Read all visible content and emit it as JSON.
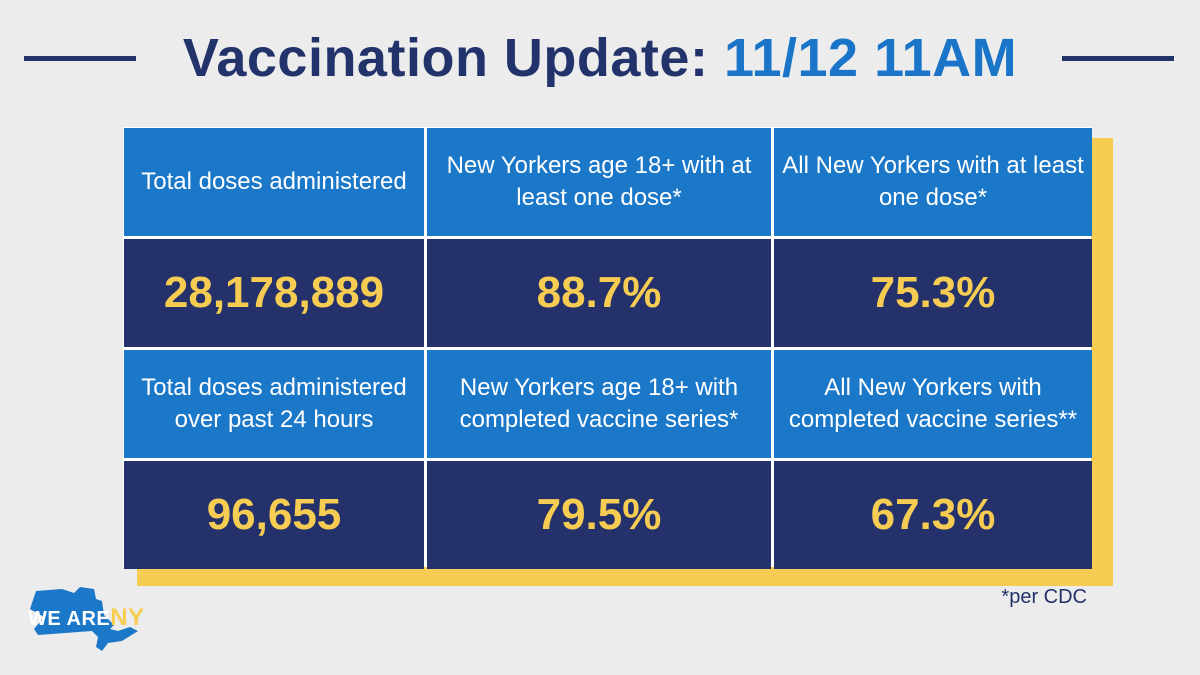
{
  "header": {
    "title_main": "Vaccination Update: ",
    "title_date": "11/12 11AM"
  },
  "stats": {
    "row1": [
      {
        "label": "Total doses administered",
        "value": "28,178,889"
      },
      {
        "label": "New Yorkers age 18+ with at least one dose*",
        "value": "88.7%"
      },
      {
        "label": "All New Yorkers with at least one dose*",
        "value": "75.3%"
      }
    ],
    "row2": [
      {
        "label": "Total doses administered over past 24 hours",
        "value": "96,655"
      },
      {
        "label": "New Yorkers age 18+ with completed vaccine series*",
        "value": "79.5%"
      },
      {
        "label": "All New Yorkers with completed vaccine series**",
        "value": "67.3%"
      }
    ]
  },
  "footnote": "*per CDC",
  "logo": {
    "we_are": "WE ARE",
    "ny": "NY",
    "icon": "ny-state-map-icon"
  },
  "colors": {
    "navy": "#22336b",
    "blue": "#1b78c9",
    "yellow": "#f6cc52",
    "background": "#ececec"
  }
}
